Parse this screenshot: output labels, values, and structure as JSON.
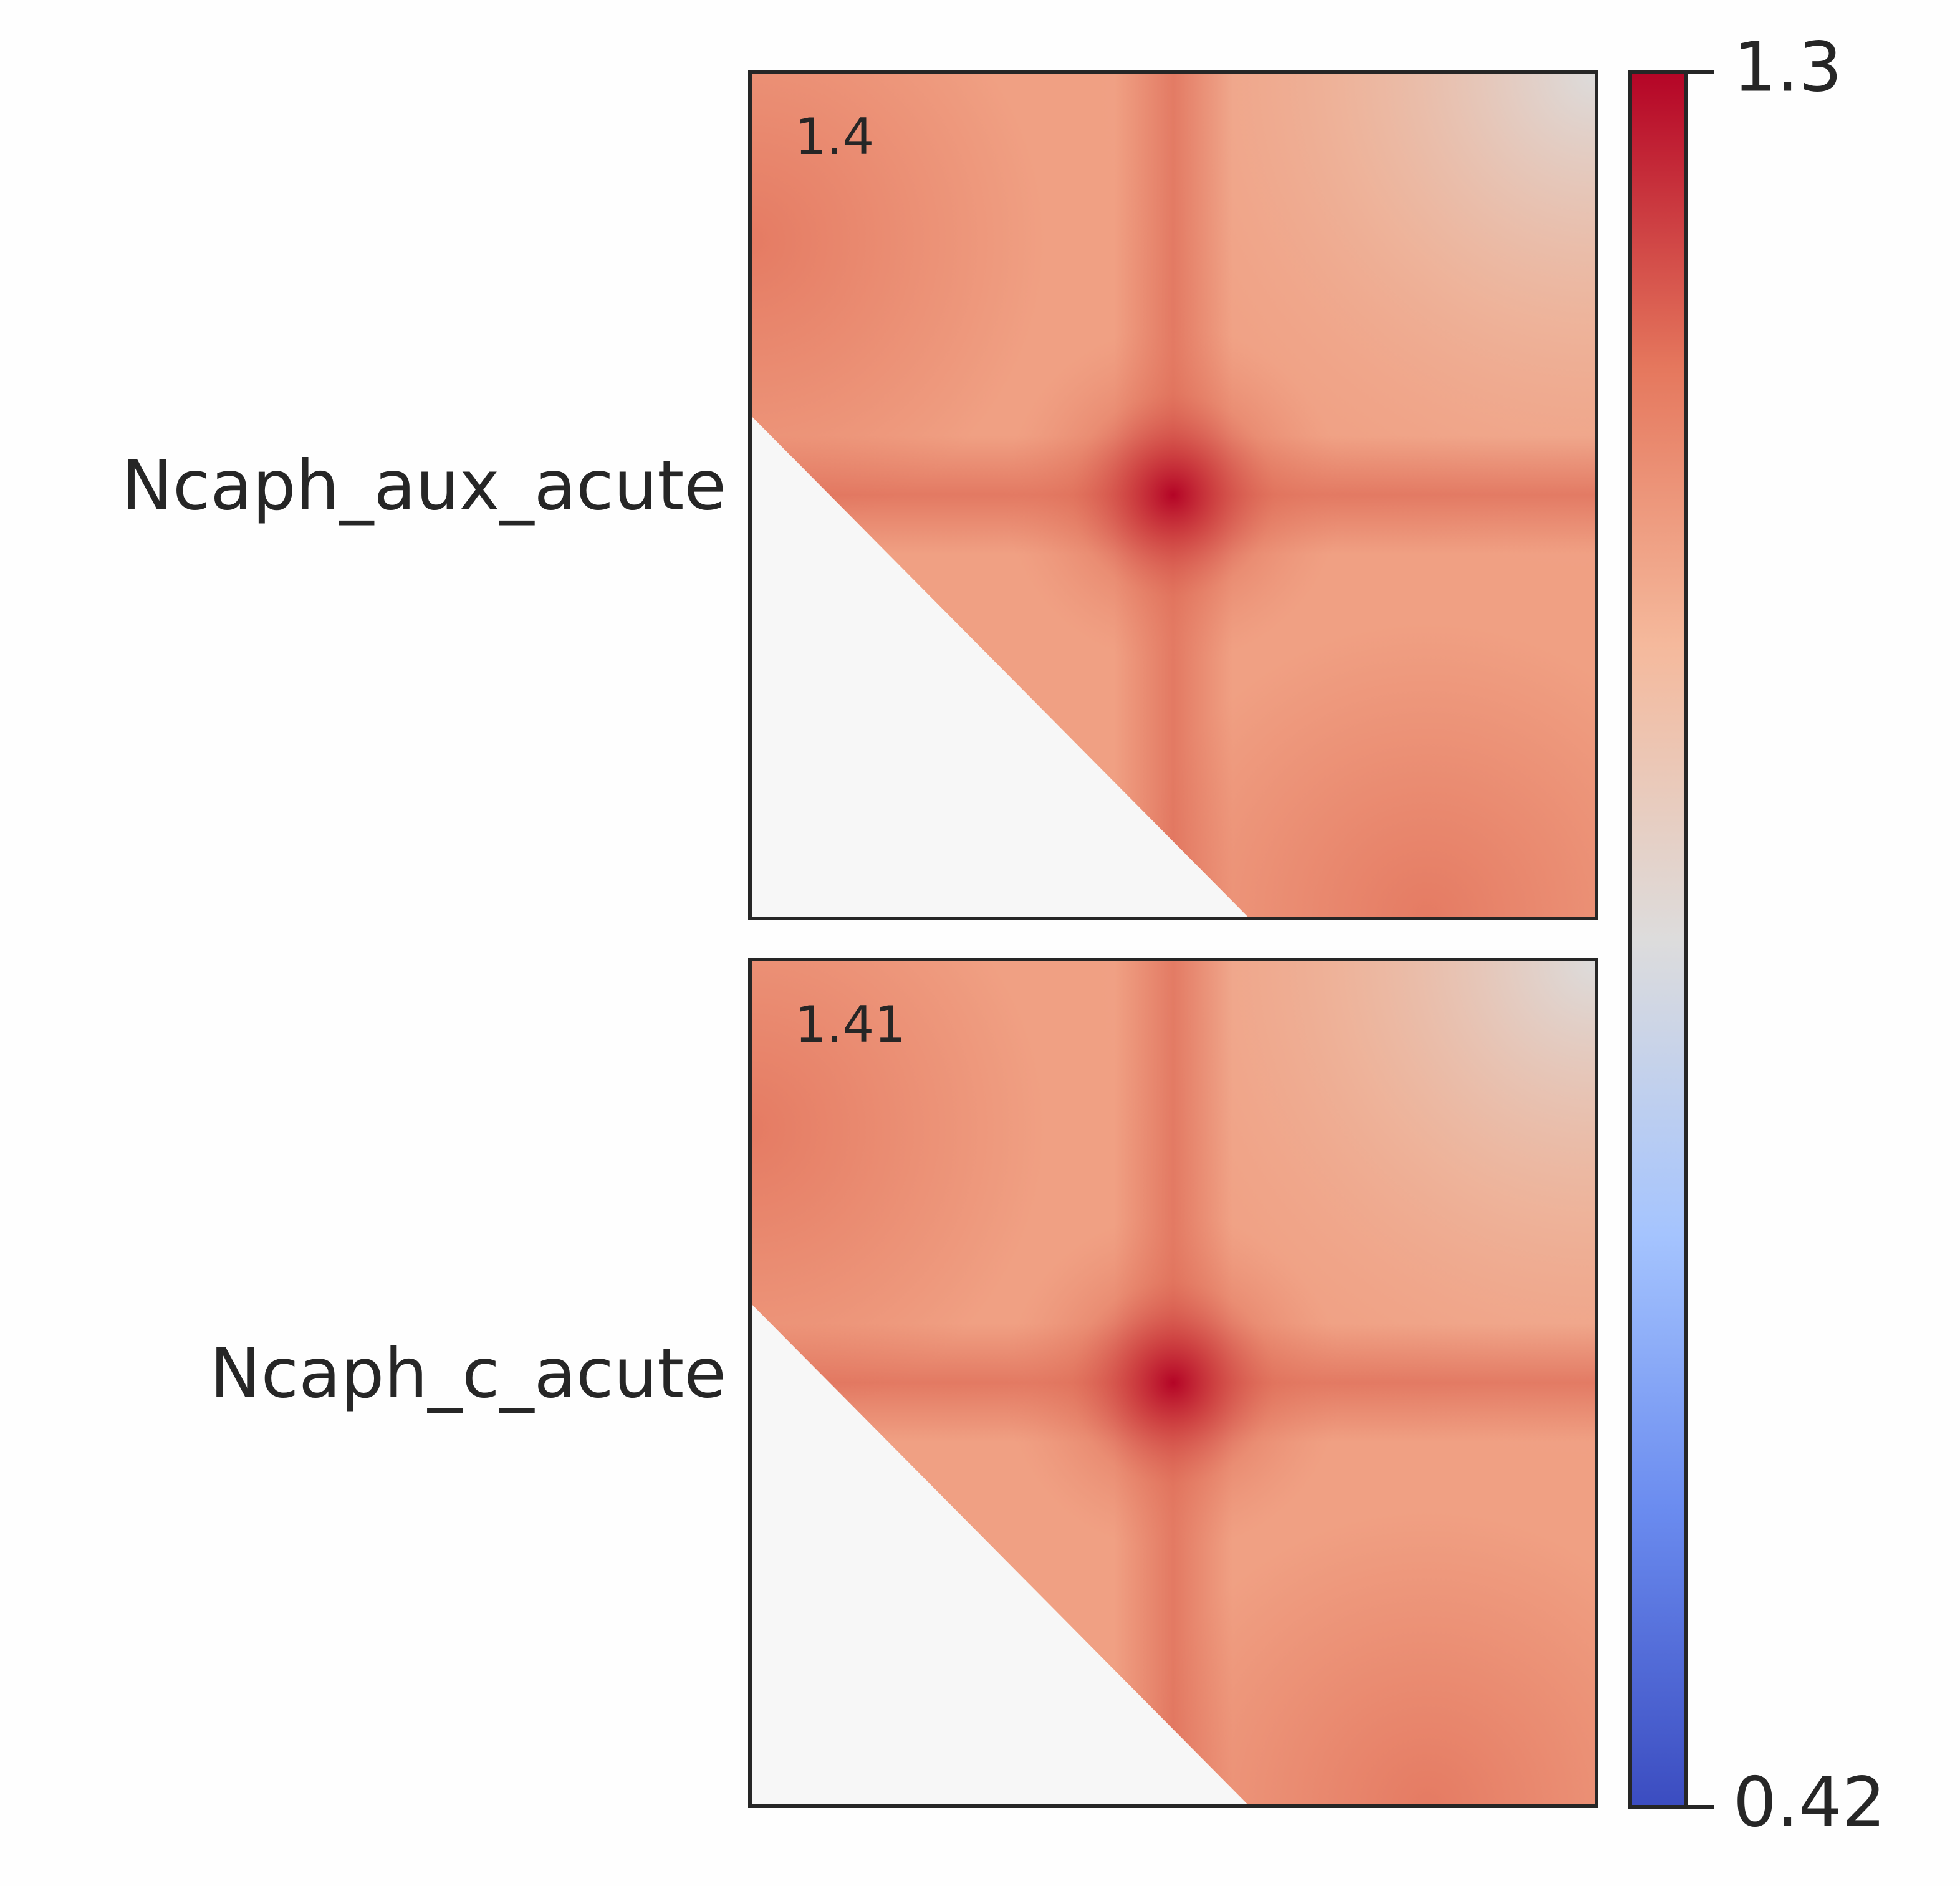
{
  "chart_data": {
    "type": "heatmap",
    "panels": [
      {
        "label": "Ncaph_aux_acute",
        "value": 1.4
      },
      {
        "label": "Ncaph_c_acute",
        "value": 1.41
      }
    ],
    "colormap": "coolwarm",
    "clim": [
      0.42,
      1.3
    ],
    "cticks": [
      0.42,
      1.3
    ]
  }
}
